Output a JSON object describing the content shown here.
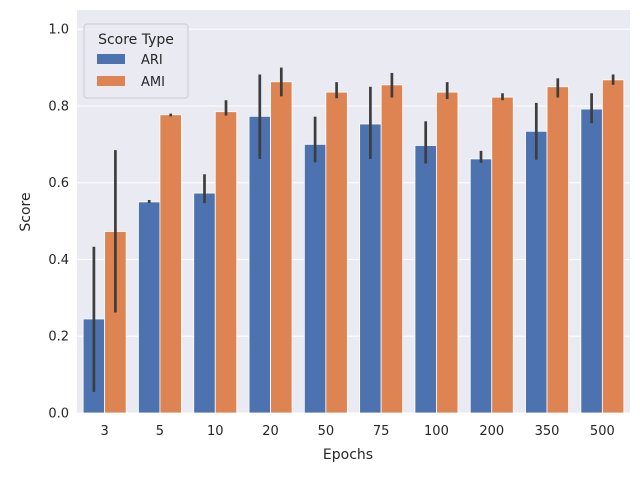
{
  "chart_data": {
    "type": "bar",
    "xlabel": "Epochs",
    "ylabel": "Score",
    "categories": [
      "3",
      "5",
      "10",
      "20",
      "50",
      "75",
      "100",
      "200",
      "350",
      "500"
    ],
    "ylim": [
      0,
      1.05
    ],
    "yticks": [
      "0.0",
      "0.2",
      "0.4",
      "0.6",
      "0.8",
      "1.0"
    ],
    "grid": true,
    "legend": {
      "title": "Score Type",
      "placement": "top-left"
    },
    "series": [
      {
        "name": "ARI",
        "color": "#4c72b0",
        "values": [
          0.245,
          0.55,
          0.573,
          0.773,
          0.7,
          0.753,
          0.697,
          0.662,
          0.734,
          0.792
        ],
        "err_low": [
          0.055,
          0.547,
          0.547,
          0.662,
          0.653,
          0.662,
          0.65,
          0.652,
          0.66,
          0.755
        ],
        "err_high": [
          0.433,
          0.555,
          0.622,
          0.882,
          0.772,
          0.85,
          0.76,
          0.683,
          0.808,
          0.833
        ]
      },
      {
        "name": "AMI",
        "color": "#dd8452",
        "values": [
          0.473,
          0.777,
          0.785,
          0.863,
          0.836,
          0.855,
          0.836,
          0.823,
          0.85,
          0.868
        ],
        "err_low": [
          0.262,
          0.773,
          0.775,
          0.825,
          0.82,
          0.822,
          0.818,
          0.815,
          0.822,
          0.855
        ],
        "err_high": [
          0.685,
          0.78,
          0.815,
          0.9,
          0.862,
          0.886,
          0.862,
          0.833,
          0.872,
          0.882
        ]
      }
    ]
  }
}
